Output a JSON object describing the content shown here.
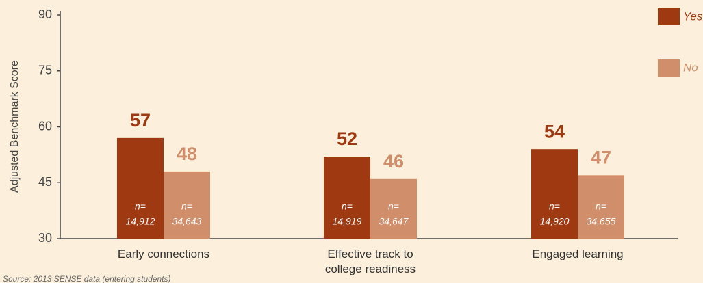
{
  "chart_data": {
    "type": "bar",
    "y_axis_label": "Adjusted Benchmark Score",
    "categories": [
      "Early connections",
      "Effective track to college readiness",
      "Engaged learning"
    ],
    "series": [
      {
        "name": "Yes",
        "color": "#9e3911",
        "values": [
          57,
          52,
          54
        ],
        "sample_sizes": [
          "14,912",
          "14,919",
          "14,920"
        ]
      },
      {
        "name": "No",
        "color": "#d18e6b",
        "values": [
          48,
          46,
          47
        ],
        "sample_sizes": [
          "34,643",
          "34,647",
          "34,655"
        ]
      }
    ],
    "sample_size_prefix": "n=",
    "ylim": [
      30,
      90
    ],
    "yticks": [
      30,
      45,
      60,
      75,
      90
    ],
    "grid": false,
    "legend": "top-right",
    "source": "Source: 2013 SENSE data (entering students)"
  }
}
